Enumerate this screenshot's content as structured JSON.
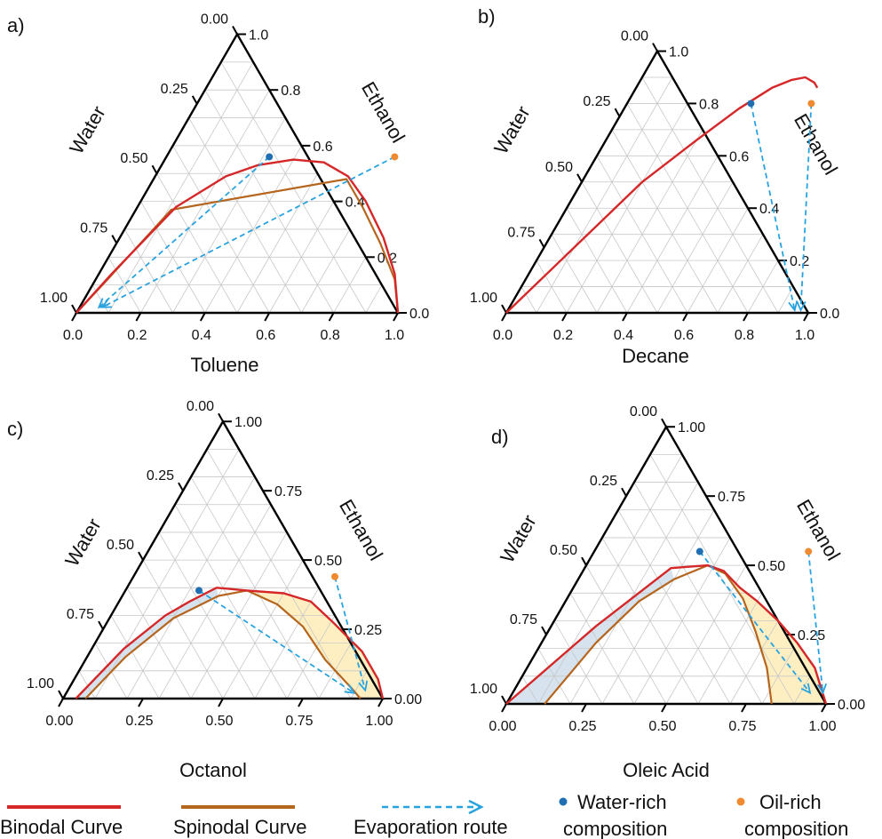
{
  "chart_data": [
    {
      "type": "ternary",
      "panel_label": "a)",
      "xlabel": "Toluene",
      "left_label": "Water",
      "right_label": "Ethanol",
      "bottom_ticks": [
        "0.0",
        "0.2",
        "0.4",
        "0.6",
        "0.8",
        "1.0"
      ],
      "right_ticks": [
        "0.0",
        "0.2",
        "0.4",
        "0.6",
        "0.8",
        "1.0"
      ],
      "left_ticks": [
        "1.00",
        "0.75",
        "0.50",
        "0.25",
        "0.00"
      ],
      "binodal": [
        [
          0.0,
          0.0
        ],
        [
          0.04,
          0.14
        ],
        [
          0.12,
          0.38
        ],
        [
          0.22,
          0.49
        ],
        [
          0.3,
          0.53
        ],
        [
          0.4,
          0.55
        ],
        [
          0.5,
          0.54
        ],
        [
          0.6,
          0.49
        ],
        [
          0.7,
          0.4
        ],
        [
          0.82,
          0.27
        ],
        [
          0.92,
          0.14
        ],
        [
          1.0,
          0.0
        ]
      ],
      "spinodal": [
        [
          0.0,
          0.0
        ],
        [
          0.04,
          0.13
        ],
        [
          0.11,
          0.37
        ],
        [
          0.6,
          0.48
        ],
        [
          0.7,
          0.38
        ],
        [
          0.82,
          0.25
        ],
        [
          0.93,
          0.12
        ],
        [
          1.0,
          0.0
        ]
      ],
      "water_rich_point": [
        0.32,
        0.56
      ],
      "oil_rich_point": [
        0.71,
        0.56
      ],
      "routes": [
        {
          "from": [
            0.32,
            0.56
          ],
          "to": [
            0.06,
            0.02
          ]
        },
        {
          "from": [
            0.71,
            0.56
          ],
          "to": [
            0.07,
            0.02
          ]
        }
      ],
      "shaded_regions": false
    },
    {
      "type": "ternary",
      "panel_label": "b)",
      "xlabel": "Decane",
      "left_label": "Water",
      "right_label": "Ethanol",
      "bottom_ticks": [
        "0.0",
        "0.2",
        "0.4",
        "0.6",
        "0.8",
        "1.0"
      ],
      "right_ticks": [
        "0.0",
        "0.2",
        "0.4",
        "0.6",
        "0.8",
        "1.0"
      ],
      "left_ticks": [
        "1.00",
        "0.75",
        "0.50",
        "0.25",
        "0.00"
      ],
      "binodal": [
        [
          0.0,
          0.0
        ],
        [
          0.2,
          0.5
        ],
        [
          0.3,
          0.66
        ],
        [
          0.38,
          0.78
        ],
        [
          0.45,
          0.86
        ],
        [
          0.5,
          0.89
        ],
        [
          0.54,
          0.9
        ],
        [
          0.58,
          0.88
        ],
        [
          0.6,
          0.86
        ]
      ],
      "spinodal": [],
      "water_rich_point": [
        0.41,
        0.8
      ],
      "oil_rich_point": [
        0.61,
        0.8
      ],
      "routes": [
        {
          "from": [
            0.41,
            0.8
          ],
          "to": [
            0.95,
            0.01
          ]
        },
        {
          "from": [
            0.61,
            0.8
          ],
          "to": [
            0.97,
            0.01
          ]
        }
      ],
      "shaded_regions": false
    },
    {
      "type": "ternary",
      "panel_label": "c)",
      "xlabel": "Octanol",
      "left_label": "Water",
      "right_label": "Ethanol",
      "bottom_ticks": [
        "0.00",
        "0.25",
        "0.50",
        "0.75",
        "1.00"
      ],
      "right_ticks": [
        "0.00",
        "0.25",
        "0.50",
        "0.75",
        "1.00"
      ],
      "left_ticks": [
        "1.00",
        "0.75",
        "0.50",
        "0.25",
        "0.00"
      ],
      "binodal": [
        [
          0.04,
          0.0
        ],
        [
          0.1,
          0.18
        ],
        [
          0.17,
          0.3
        ],
        [
          0.22,
          0.35
        ],
        [
          0.28,
          0.4
        ],
        [
          0.38,
          0.39
        ],
        [
          0.5,
          0.38
        ],
        [
          0.6,
          0.35
        ],
        [
          0.7,
          0.28
        ],
        [
          0.85,
          0.17
        ],
        [
          0.95,
          0.07
        ],
        [
          1.0,
          0.0
        ]
      ],
      "spinodal": [
        [
          0.07,
          0.0
        ],
        [
          0.12,
          0.15
        ],
        [
          0.2,
          0.29
        ],
        [
          0.3,
          0.37
        ],
        [
          0.38,
          0.39
        ],
        [
          0.5,
          0.34
        ],
        [
          0.62,
          0.26
        ],
        [
          0.75,
          0.14
        ],
        [
          0.88,
          0.04
        ],
        [
          0.93,
          0.0
        ]
      ],
      "water_rich_point": [
        0.23,
        0.39
      ],
      "oil_rich_point": [
        0.63,
        0.44
      ],
      "routes": [
        {
          "from": [
            0.23,
            0.39
          ],
          "to": [
            0.9,
            0.02
          ]
        },
        {
          "from": [
            0.63,
            0.44
          ],
          "to": [
            0.93,
            0.03
          ]
        }
      ],
      "shaded_regions": true
    },
    {
      "type": "ternary",
      "panel_label": "d)",
      "xlabel": "Oleic Acid",
      "left_label": "Water",
      "right_label": "Ethanol",
      "bottom_ticks": [
        "0.00",
        "0.25",
        "0.50",
        "0.75",
        "1.00"
      ],
      "right_ticks": [
        "0.00",
        "0.25",
        "0.50",
        "0.75",
        "1.00"
      ],
      "left_ticks": [
        "1.00",
        "0.75",
        "0.50",
        "0.25",
        "0.00"
      ],
      "binodal": [
        [
          0.0,
          0.0
        ],
        [
          0.14,
          0.28
        ],
        [
          0.27,
          0.49
        ],
        [
          0.38,
          0.5
        ],
        [
          0.44,
          0.48
        ],
        [
          0.52,
          0.42
        ],
        [
          0.6,
          0.37
        ],
        [
          0.7,
          0.3
        ],
        [
          0.8,
          0.22
        ],
        [
          0.9,
          0.13
        ],
        [
          1.0,
          0.0
        ]
      ],
      "spinodal": [
        [
          0.12,
          0.0
        ],
        [
          0.17,
          0.22
        ],
        [
          0.23,
          0.37
        ],
        [
          0.3,
          0.45
        ],
        [
          0.38,
          0.5
        ],
        [
          0.45,
          0.47
        ],
        [
          0.55,
          0.38
        ],
        [
          0.65,
          0.26
        ],
        [
          0.75,
          0.13
        ],
        [
          0.83,
          0.0
        ]
      ],
      "water_rich_point": [
        0.33,
        0.55
      ],
      "oil_rich_point": [
        0.67,
        0.55
      ],
      "routes": [
        {
          "from": [
            0.33,
            0.55
          ],
          "to": [
            0.93,
            0.04
          ]
        },
        {
          "from": [
            0.67,
            0.55
          ],
          "to": [
            0.97,
            0.04
          ]
        }
      ],
      "shaded_regions": true
    }
  ],
  "legend": {
    "binodal": "Binodal Curve",
    "spinodal": "Spinodal Curve",
    "route": "Evaporation route",
    "water_rich_line1": "Water-rich",
    "water_rich_line2": "composition",
    "oil_rich_line1": "Oil-rich",
    "oil_rich_line2": "composition"
  },
  "colors": {
    "binodal": "#d62728",
    "spinodal": "#b5651d",
    "route": "#29a3e0",
    "water_rich": "#1f6fb2",
    "oil_rich": "#f08a30",
    "water_shade": "#d6e2ee",
    "oil_shade": "#fdefc2",
    "grid": "#c8c8c8",
    "axis": "#000000"
  }
}
